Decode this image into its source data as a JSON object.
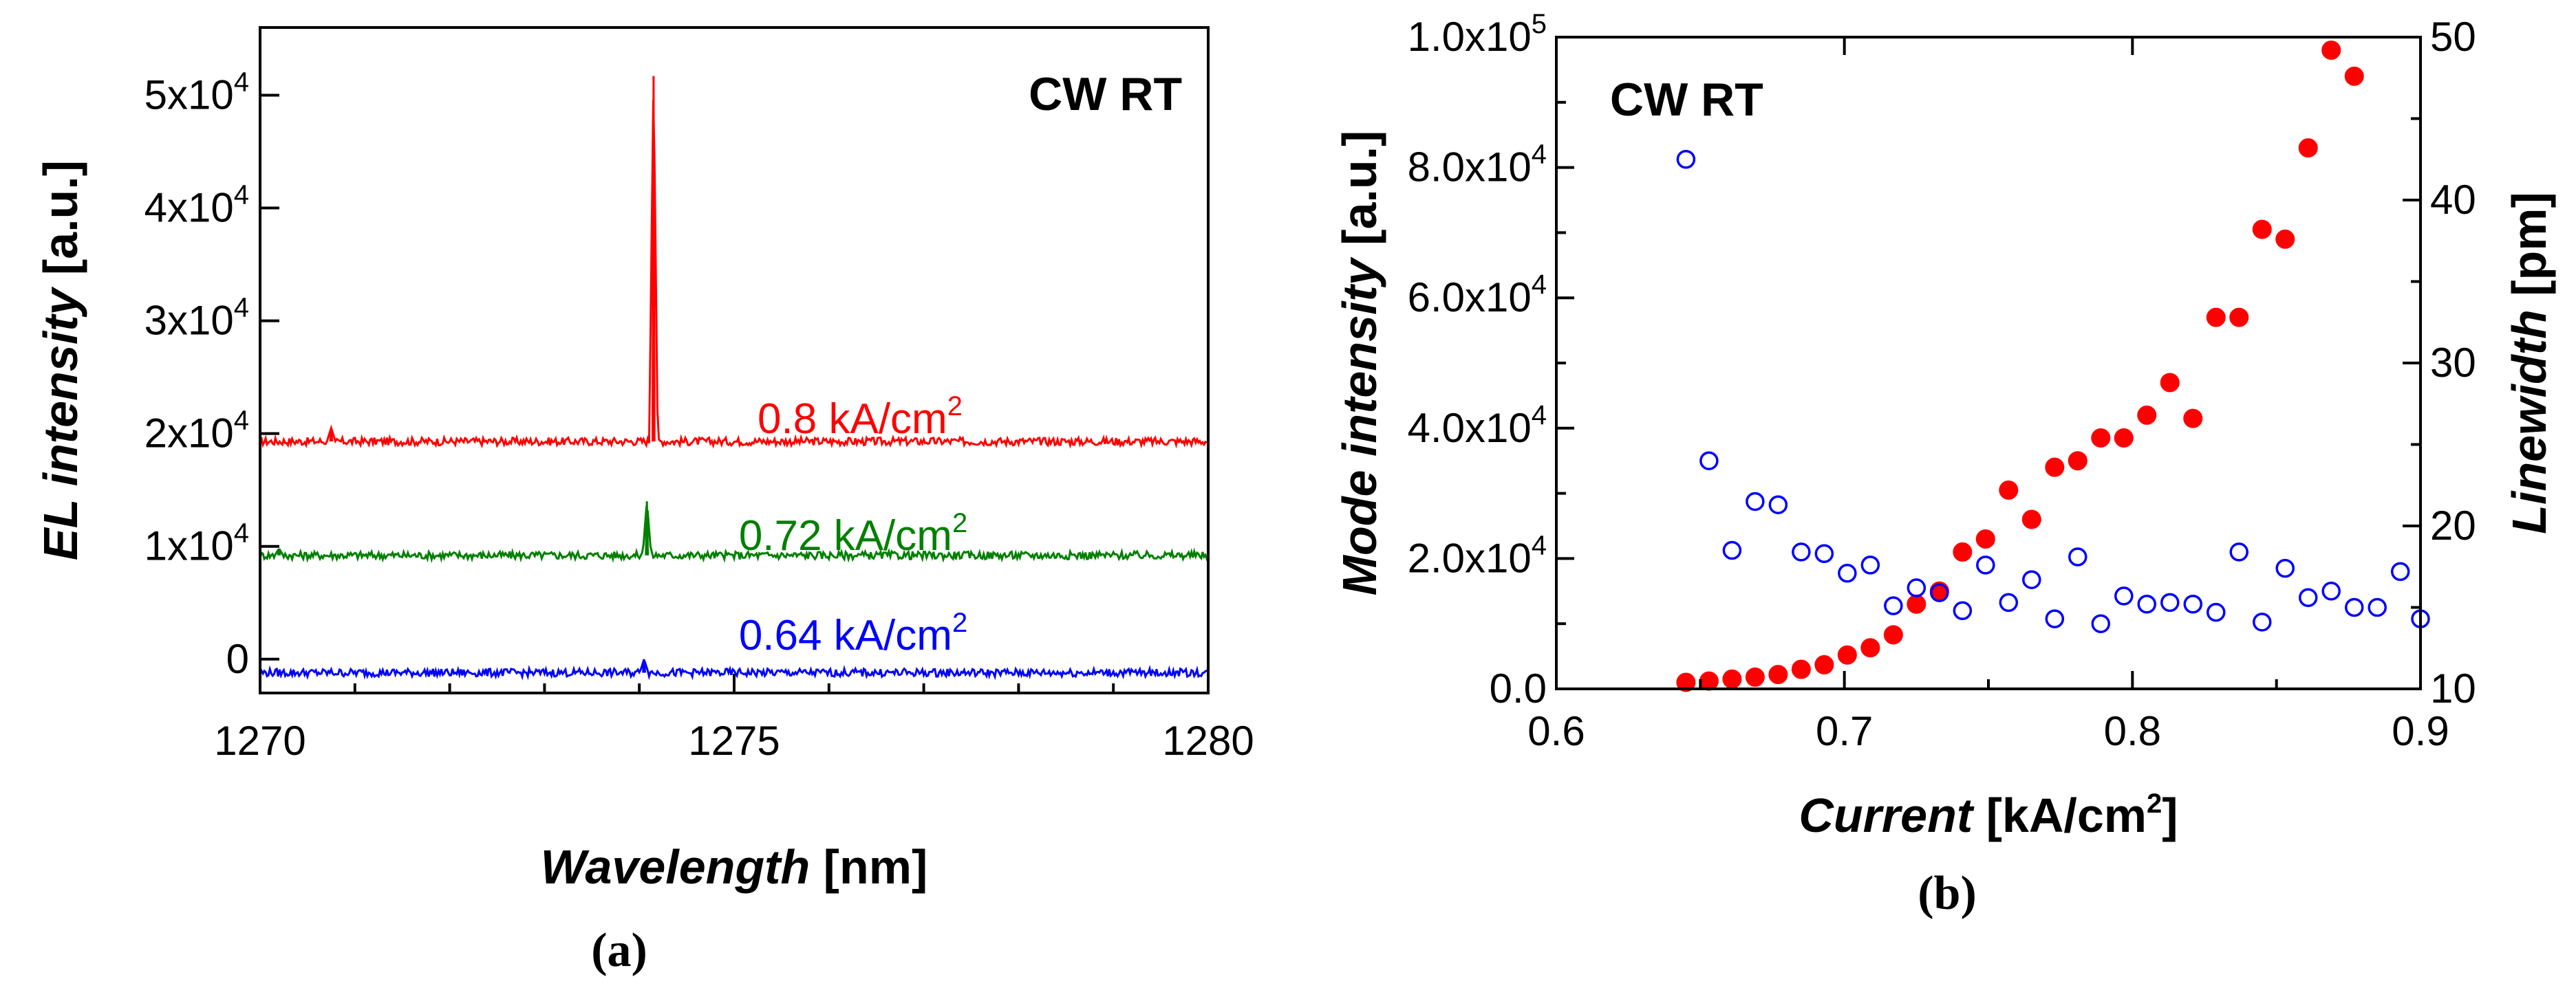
{
  "chart_data": [
    {
      "type": "line",
      "panel_label": "(a)",
      "annotation": "CW RT",
      "xlabel_italic": "Wavelength",
      "xlabel_unit": " [nm]",
      "ylabel_italic": "EL intensity",
      "ylabel_unit": " [a.u.]",
      "xlim": [
        1270,
        1280
      ],
      "ylim": [
        -3000,
        56000
      ],
      "xticks": [
        {
          "value": 1270,
          "label": "1270"
        },
        {
          "value": 1275,
          "label": "1275"
        },
        {
          "value": 1280,
          "label": "1280"
        }
      ],
      "yticks": [
        {
          "value": 0,
          "mant": "0",
          "exp": ""
        },
        {
          "value": 10000,
          "mant": "1x10",
          "exp": "4"
        },
        {
          "value": 20000,
          "mant": "2x10",
          "exp": "4"
        },
        {
          "value": 30000,
          "mant": "3x10",
          "exp": "4"
        },
        {
          "value": 40000,
          "mant": "4x10",
          "exp": "4"
        },
        {
          "value": 50000,
          "mant": "5x10",
          "exp": "4"
        }
      ],
      "series": [
        {
          "name": "0.8 kA/cm2",
          "label_base": "0.8 kA/cm",
          "label_sup": "2",
          "color": "#ff0000",
          "baseline": 19300,
          "features": [
            {
              "x": 1270.75,
              "y": 20500
            },
            {
              "x": 1274.15,
              "y": 51700
            }
          ]
        },
        {
          "name": "0.72 kA/cm2",
          "label_base": "0.72 kA/cm",
          "label_sup": "2",
          "color": "#008000",
          "baseline": 9200,
          "features": [
            {
              "x": 1270.2,
              "y": 9800
            },
            {
              "x": 1274.08,
              "y": 14000
            }
          ]
        },
        {
          "name": "0.64 kA/cm2",
          "label_base": "0.64 kA/cm",
          "label_sup": "2",
          "color": "#0000ff",
          "baseline": -1200,
          "features": [
            {
              "x": 1274.05,
              "y": 0
            }
          ]
        }
      ]
    },
    {
      "type": "scatter",
      "panel_label": "(b)",
      "annotation": "CW RT",
      "xlabel_italic": "Current",
      "xlabel_unit": " [kA/cm",
      "xlabel_sup": "2",
      "xlabel_end": "]",
      "ylabel_italic": "Mode intensity",
      "ylabel_unit": " [a.u.]",
      "y2label_italic": "Linewidth",
      "y2label_unit": " [pm]",
      "xlim": [
        0.6,
        0.9
      ],
      "ylim": [
        0,
        100000
      ],
      "y2lim": [
        10,
        50
      ],
      "xticks": [
        {
          "value": 0.6,
          "label": "0.6"
        },
        {
          "value": 0.7,
          "label": "0.7"
        },
        {
          "value": 0.8,
          "label": "0.8"
        },
        {
          "value": 0.9,
          "label": "0.9"
        }
      ],
      "yticks": [
        {
          "value": 0,
          "mant": "0.0",
          "exp": ""
        },
        {
          "value": 20000,
          "mant": "2.0x10",
          "exp": "4"
        },
        {
          "value": 40000,
          "mant": "4.0x10",
          "exp": "4"
        },
        {
          "value": 60000,
          "mant": "6.0x10",
          "exp": "4"
        },
        {
          "value": 80000,
          "mant": "8.0x10",
          "exp": "4"
        },
        {
          "value": 100000,
          "mant": "1.0x10",
          "exp": "5"
        }
      ],
      "y2ticks": [
        {
          "value": 10,
          "label": "10"
        },
        {
          "value": 20,
          "label": "20"
        },
        {
          "value": 30,
          "label": "30"
        },
        {
          "value": 40,
          "label": "40"
        },
        {
          "value": 50,
          "label": "50"
        }
      ],
      "series": [
        {
          "name": "Mode intensity",
          "axis": "left",
          "marker": "filled-circle",
          "color": "#ff0000",
          "x": [
            0.645,
            0.653,
            0.661,
            0.669,
            0.677,
            0.685,
            0.693,
            0.701,
            0.709,
            0.717,
            0.725,
            0.733,
            0.741,
            0.749,
            0.757,
            0.765,
            0.773,
            0.781,
            0.789,
            0.797,
            0.805,
            0.813,
            0.821,
            0.829,
            0.837,
            0.845,
            0.853,
            0.861,
            0.869,
            0.877
          ],
          "y": [
            1000,
            1200,
            1500,
            1800,
            2200,
            3000,
            3700,
            5200,
            6300,
            8300,
            13000,
            15000,
            21000,
            23000,
            30500,
            26000,
            34000,
            35000,
            38500,
            38500,
            42000,
            47000,
            41500,
            57000,
            57000,
            70500,
            69000,
            83000,
            98000,
            94000
          ]
        },
        {
          "name": "Linewidth",
          "axis": "right",
          "marker": "open-circle",
          "color": "#0000ff",
          "x": [
            0.645,
            0.653,
            0.661,
            0.669,
            0.677,
            0.685,
            0.693,
            0.701,
            0.709,
            0.717,
            0.725,
            0.733,
            0.741,
            0.749,
            0.757,
            0.765,
            0.773,
            0.781,
            0.789,
            0.797,
            0.805,
            0.813,
            0.821,
            0.829,
            0.837,
            0.845,
            0.853,
            0.861,
            0.869,
            0.877,
            0.885,
            0.893,
            0.9
          ],
          "y": [
            42.5,
            24,
            18.5,
            21.5,
            21.3,
            18.4,
            18.3,
            17.1,
            17.6,
            15.1,
            16.2,
            15.9,
            14.8,
            17.6,
            15.3,
            16.7,
            14.3,
            18.1,
            14,
            15.7,
            15.2,
            15.3,
            15.2,
            14.7,
            18.4,
            14.1,
            17.4,
            15.6,
            16,
            15,
            15,
            17.2,
            14.3
          ]
        }
      ]
    }
  ]
}
